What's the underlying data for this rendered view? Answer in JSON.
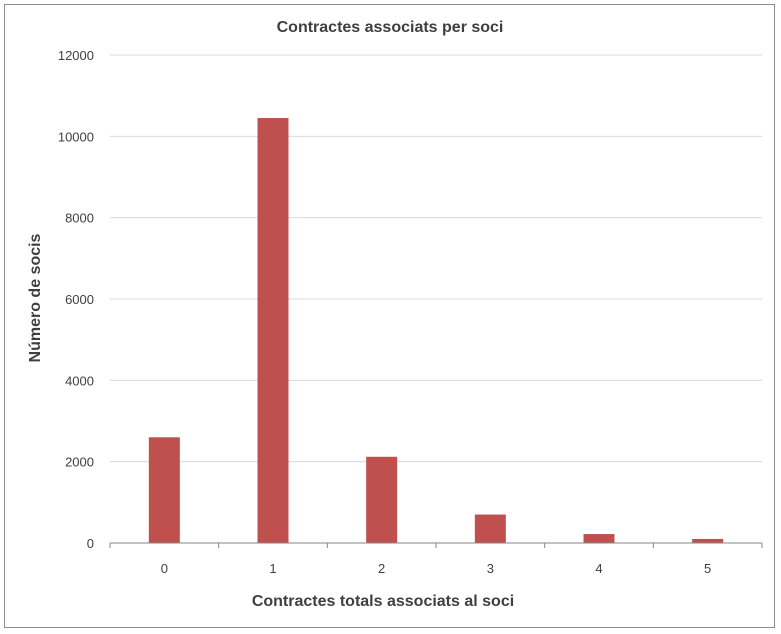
{
  "chart_data": {
    "type": "bar",
    "title": "Contractes associats per soci",
    "xlabel": "Contractes totals associats al soci",
    "ylabel": "Número de socis",
    "categories": [
      "0",
      "1",
      "2",
      "3",
      "4",
      "5"
    ],
    "series": [
      {
        "values": [
          2600,
          10450,
          2120,
          700,
          220,
          100
        ]
      }
    ],
    "ylim": [
      0,
      12000
    ],
    "yticks": [
      "0",
      "2000",
      "4000",
      "6000",
      "8000",
      "10000",
      "12000"
    ],
    "grid": true,
    "legend": "none",
    "colors": {
      "bar": "#c0504d",
      "grid": "#d9d9d9",
      "axis": "#868686",
      "text": "#3f3f3f"
    }
  }
}
